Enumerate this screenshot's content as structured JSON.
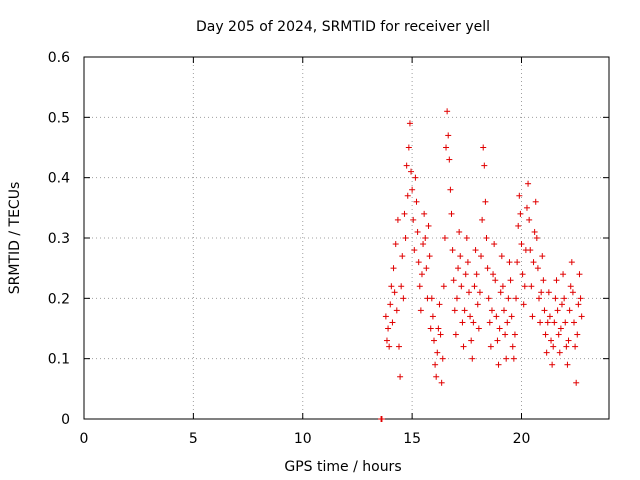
{
  "chart_data": {
    "type": "scatter",
    "title": "Day 205 of 2024, SRMTID for receiver yell",
    "xlabel": "GPS time / hours",
    "ylabel": "SRMTID / TECUs",
    "xlim": [
      0,
      24
    ],
    "ylim": [
      0,
      0.6
    ],
    "xticks": [
      0,
      5,
      10,
      15,
      20
    ],
    "yticks": [
      0,
      0.1,
      0.2,
      0.3,
      0.4,
      0.5,
      0.6
    ],
    "xtick_labels": [
      "0",
      "5",
      "10",
      "15",
      "20"
    ],
    "ytick_labels": [
      "0",
      "0.1",
      "0.2",
      "0.3",
      "0.4",
      "0.5",
      "0.6"
    ],
    "grid": true,
    "marker": "+",
    "color": "#e00000",
    "series": [
      {
        "name": "SRMTID",
        "points": [
          [
            13.58,
            0.0
          ],
          [
            13.62,
            0.0
          ],
          [
            13.8,
            0.17
          ],
          [
            13.85,
            0.13
          ],
          [
            13.9,
            0.15
          ],
          [
            13.95,
            0.12
          ],
          [
            14.0,
            0.19
          ],
          [
            14.05,
            0.22
          ],
          [
            14.1,
            0.16
          ],
          [
            14.15,
            0.25
          ],
          [
            14.2,
            0.21
          ],
          [
            14.25,
            0.29
          ],
          [
            14.3,
            0.18
          ],
          [
            14.35,
            0.33
          ],
          [
            14.4,
            0.12
          ],
          [
            14.45,
            0.07
          ],
          [
            14.5,
            0.22
          ],
          [
            14.55,
            0.27
          ],
          [
            14.6,
            0.2
          ],
          [
            14.65,
            0.34
          ],
          [
            14.7,
            0.3
          ],
          [
            14.75,
            0.42
          ],
          [
            14.8,
            0.37
          ],
          [
            14.85,
            0.45
          ],
          [
            14.9,
            0.49
          ],
          [
            14.95,
            0.41
          ],
          [
            15.0,
            0.38
          ],
          [
            15.05,
            0.33
          ],
          [
            15.1,
            0.28
          ],
          [
            15.15,
            0.4
          ],
          [
            15.2,
            0.36
          ],
          [
            15.25,
            0.31
          ],
          [
            15.3,
            0.26
          ],
          [
            15.35,
            0.22
          ],
          [
            15.4,
            0.18
          ],
          [
            15.45,
            0.24
          ],
          [
            15.5,
            0.29
          ],
          [
            15.55,
            0.34
          ],
          [
            15.6,
            0.3
          ],
          [
            15.65,
            0.25
          ],
          [
            15.7,
            0.2
          ],
          [
            15.75,
            0.32
          ],
          [
            15.8,
            0.27
          ],
          [
            15.85,
            0.15
          ],
          [
            15.9,
            0.2
          ],
          [
            15.95,
            0.17
          ],
          [
            16.0,
            0.13
          ],
          [
            16.05,
            0.09
          ],
          [
            16.1,
            0.07
          ],
          [
            16.15,
            0.11
          ],
          [
            16.2,
            0.15
          ],
          [
            16.25,
            0.19
          ],
          [
            16.3,
            0.14
          ],
          [
            16.35,
            0.06
          ],
          [
            16.4,
            0.1
          ],
          [
            16.45,
            0.22
          ],
          [
            16.5,
            0.3
          ],
          [
            16.55,
            0.45
          ],
          [
            16.6,
            0.51
          ],
          [
            16.65,
            0.47
          ],
          [
            16.7,
            0.43
          ],
          [
            16.75,
            0.38
          ],
          [
            16.8,
            0.34
          ],
          [
            16.85,
            0.28
          ],
          [
            16.9,
            0.23
          ],
          [
            16.95,
            0.18
          ],
          [
            17.0,
            0.14
          ],
          [
            17.05,
            0.2
          ],
          [
            17.1,
            0.25
          ],
          [
            17.15,
            0.31
          ],
          [
            17.2,
            0.27
          ],
          [
            17.25,
            0.22
          ],
          [
            17.3,
            0.16
          ],
          [
            17.35,
            0.12
          ],
          [
            17.4,
            0.18
          ],
          [
            17.45,
            0.24
          ],
          [
            17.5,
            0.3
          ],
          [
            17.55,
            0.26
          ],
          [
            17.6,
            0.21
          ],
          [
            17.65,
            0.17
          ],
          [
            17.7,
            0.13
          ],
          [
            17.75,
            0.1
          ],
          [
            17.8,
            0.16
          ],
          [
            17.85,
            0.22
          ],
          [
            17.9,
            0.28
          ],
          [
            17.95,
            0.24
          ],
          [
            18.0,
            0.19
          ],
          [
            18.05,
            0.15
          ],
          [
            18.1,
            0.21
          ],
          [
            18.15,
            0.27
          ],
          [
            18.2,
            0.33
          ],
          [
            18.25,
            0.45
          ],
          [
            18.3,
            0.42
          ],
          [
            18.35,
            0.36
          ],
          [
            18.4,
            0.3
          ],
          [
            18.45,
            0.25
          ],
          [
            18.5,
            0.2
          ],
          [
            18.55,
            0.16
          ],
          [
            18.6,
            0.12
          ],
          [
            18.65,
            0.18
          ],
          [
            18.7,
            0.24
          ],
          [
            18.75,
            0.29
          ],
          [
            18.8,
            0.23
          ],
          [
            18.85,
            0.17
          ],
          [
            18.9,
            0.13
          ],
          [
            18.95,
            0.09
          ],
          [
            19.0,
            0.15
          ],
          [
            19.05,
            0.21
          ],
          [
            19.1,
            0.27
          ],
          [
            19.15,
            0.22
          ],
          [
            19.2,
            0.18
          ],
          [
            19.25,
            0.14
          ],
          [
            19.3,
            0.1
          ],
          [
            19.35,
            0.16
          ],
          [
            19.4,
            0.2
          ],
          [
            19.45,
            0.26
          ],
          [
            19.5,
            0.23
          ],
          [
            19.55,
            0.17
          ],
          [
            19.6,
            0.12
          ],
          [
            19.65,
            0.1
          ],
          [
            19.7,
            0.14
          ],
          [
            19.75,
            0.2
          ],
          [
            19.8,
            0.26
          ],
          [
            19.85,
            0.32
          ],
          [
            19.9,
            0.37
          ],
          [
            19.95,
            0.34
          ],
          [
            20.0,
            0.29
          ],
          [
            20.05,
            0.24
          ],
          [
            20.1,
            0.19
          ],
          [
            20.15,
            0.22
          ],
          [
            20.2,
            0.28
          ],
          [
            20.25,
            0.35
          ],
          [
            20.3,
            0.39
          ],
          [
            20.35,
            0.33
          ],
          [
            20.4,
            0.28
          ],
          [
            20.45,
            0.22
          ],
          [
            20.5,
            0.17
          ],
          [
            20.55,
            0.26
          ],
          [
            20.6,
            0.31
          ],
          [
            20.65,
            0.36
          ],
          [
            20.7,
            0.3
          ],
          [
            20.75,
            0.25
          ],
          [
            20.8,
            0.2
          ],
          [
            20.85,
            0.16
          ],
          [
            20.9,
            0.21
          ],
          [
            20.95,
            0.27
          ],
          [
            21.0,
            0.23
          ],
          [
            21.05,
            0.18
          ],
          [
            21.1,
            0.14
          ],
          [
            21.15,
            0.11
          ],
          [
            21.2,
            0.16
          ],
          [
            21.25,
            0.21
          ],
          [
            21.3,
            0.17
          ],
          [
            21.35,
            0.13
          ],
          [
            21.4,
            0.09
          ],
          [
            21.45,
            0.12
          ],
          [
            21.5,
            0.16
          ],
          [
            21.55,
            0.2
          ],
          [
            21.6,
            0.23
          ],
          [
            21.65,
            0.18
          ],
          [
            21.7,
            0.14
          ],
          [
            21.75,
            0.11
          ],
          [
            21.8,
            0.15
          ],
          [
            21.85,
            0.19
          ],
          [
            21.9,
            0.24
          ],
          [
            21.95,
            0.2
          ],
          [
            22.0,
            0.16
          ],
          [
            22.05,
            0.12
          ],
          [
            22.1,
            0.09
          ],
          [
            22.15,
            0.13
          ],
          [
            22.2,
            0.18
          ],
          [
            22.25,
            0.22
          ],
          [
            22.3,
            0.26
          ],
          [
            22.35,
            0.21
          ],
          [
            22.4,
            0.16
          ],
          [
            22.45,
            0.12
          ],
          [
            22.5,
            0.06
          ],
          [
            22.55,
            0.14
          ],
          [
            22.6,
            0.19
          ],
          [
            22.65,
            0.24
          ],
          [
            22.7,
            0.2
          ],
          [
            22.75,
            0.17
          ]
        ]
      }
    ]
  }
}
